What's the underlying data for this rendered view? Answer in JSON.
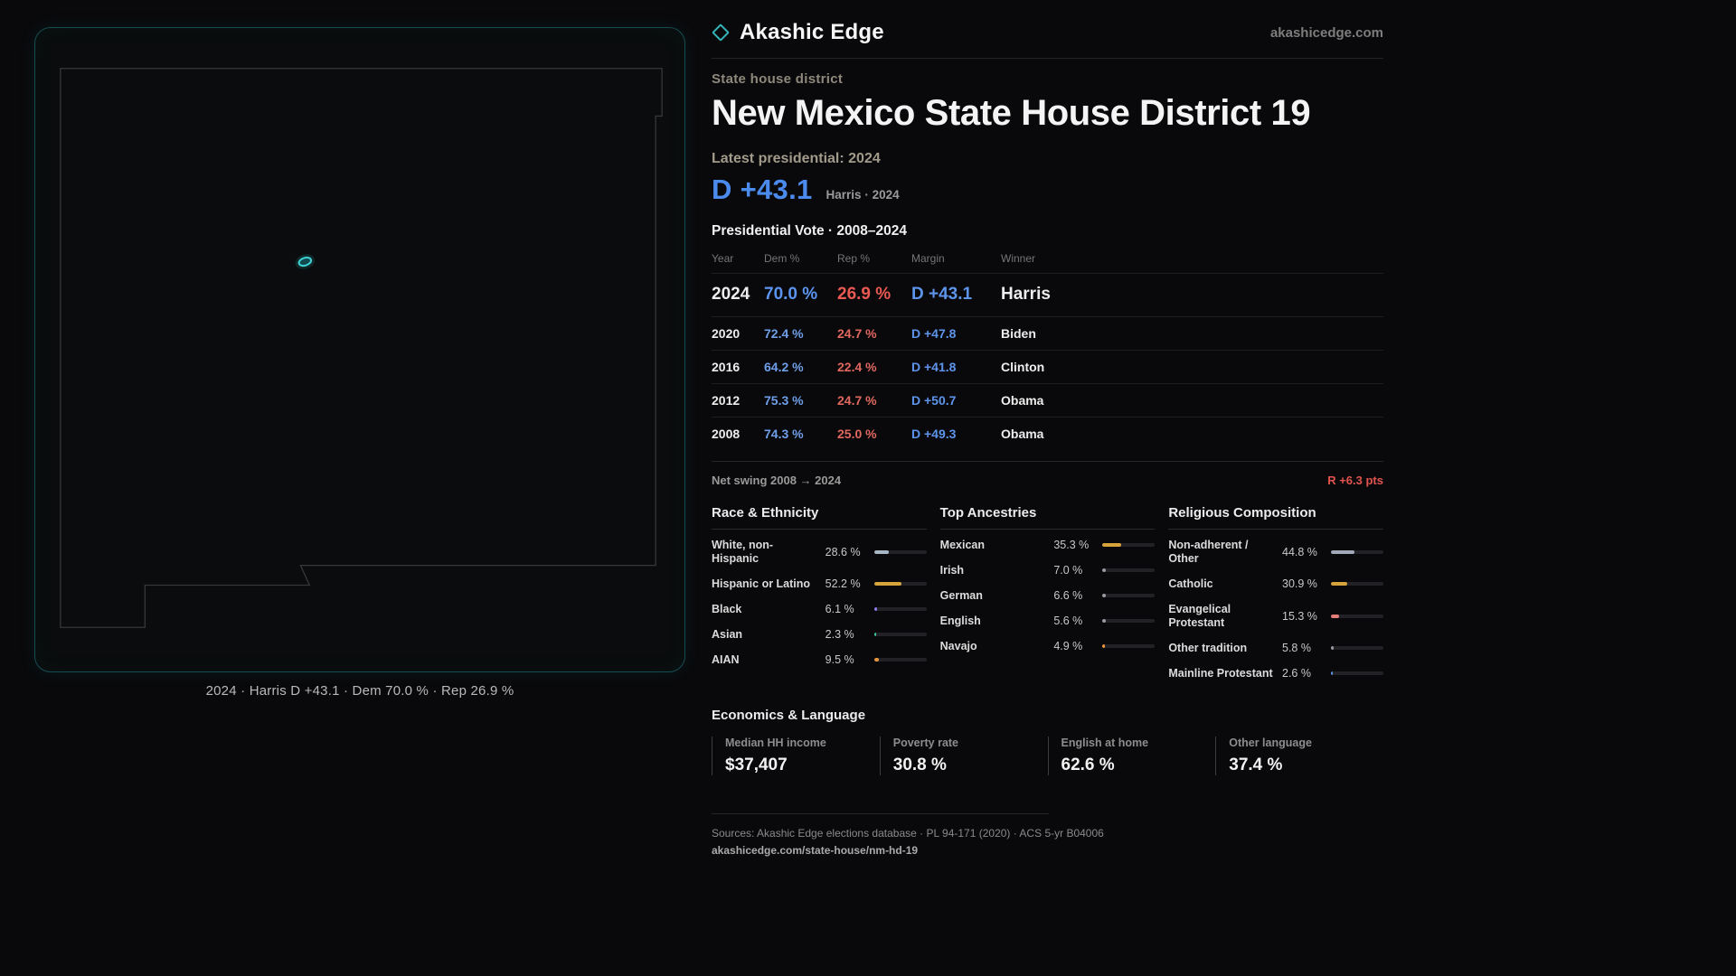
{
  "brand": {
    "name": "Akashic Edge",
    "domain": "akashicedge.com"
  },
  "map": {
    "caption": "2024 · Harris D +43.1 · Dem 70.0 % · Rep 26.9 %"
  },
  "header": {
    "kicker": "State house district",
    "title": "New Mexico State House District 19",
    "latest_label": "Latest presidential: 2024",
    "headline_margin": "D +43.1",
    "headline_note": "Harris · 2024"
  },
  "vote_table": {
    "title": "Presidential Vote · 2008–2024",
    "columns": [
      "Year",
      "Dem %",
      "Rep %",
      "Margin",
      "Winner"
    ],
    "rows": [
      {
        "year": "2024",
        "dem": "70.0 %",
        "rep": "26.9 %",
        "margin": "D +43.1",
        "winner": "Harris"
      },
      {
        "year": "2020",
        "dem": "72.4 %",
        "rep": "24.7 %",
        "margin": "D +47.8",
        "winner": "Biden"
      },
      {
        "year": "2016",
        "dem": "64.2 %",
        "rep": "22.4 %",
        "margin": "D +41.8",
        "winner": "Clinton"
      },
      {
        "year": "2012",
        "dem": "75.3 %",
        "rep": "24.7 %",
        "margin": "D +50.7",
        "winner": "Obama"
      },
      {
        "year": "2008",
        "dem": "74.3 %",
        "rep": "25.0 %",
        "margin": "D +49.3",
        "winner": "Obama"
      }
    ],
    "net_swing_label": "Net swing 2008 → 2024",
    "net_swing_value": "R +6.3 pts"
  },
  "demographics": [
    {
      "title": "Race & Ethnicity",
      "rows": [
        {
          "label": "White, non-Hispanic",
          "value": "28.6 %",
          "pct": 28.6,
          "color": "#a9b6c6"
        },
        {
          "label": "Hispanic or Latino",
          "value": "52.2 %",
          "pct": 52.2,
          "color": "#d7a43c"
        },
        {
          "label": "Black",
          "value": "6.1 %",
          "pct": 6.1,
          "color": "#8a7ef2"
        },
        {
          "label": "Asian",
          "value": "2.3 %",
          "pct": 2.3,
          "color": "#3ec9a7"
        },
        {
          "label": "AIAN",
          "value": "9.5 %",
          "pct": 9.5,
          "color": "#e8953c"
        }
      ]
    },
    {
      "title": "Top Ancestries",
      "rows": [
        {
          "label": "Mexican",
          "value": "35.3 %",
          "pct": 35.3,
          "color": "#d7a43c"
        },
        {
          "label": "Irish",
          "value": "7.0 %",
          "pct": 7.0,
          "color": "#9b9ba6"
        },
        {
          "label": "German",
          "value": "6.6 %",
          "pct": 6.6,
          "color": "#9b9ba6"
        },
        {
          "label": "English",
          "value": "5.6 %",
          "pct": 5.6,
          "color": "#9b9ba6"
        },
        {
          "label": "Navajo",
          "value": "4.9 %",
          "pct": 4.9,
          "color": "#e8953c"
        }
      ]
    },
    {
      "title": "Religious Composition",
      "rows": [
        {
          "label": "Non-adherent / Other",
          "value": "44.8 %",
          "pct": 44.8,
          "color": "#a0aab8"
        },
        {
          "label": "Catholic",
          "value": "30.9 %",
          "pct": 30.9,
          "color": "#d7a43c"
        },
        {
          "label": "Evangelical Protestant",
          "value": "15.3 %",
          "pct": 15.3,
          "color": "#e57d78"
        },
        {
          "label": "Other tradition",
          "value": "5.8 %",
          "pct": 5.8,
          "color": "#9b9ba6"
        },
        {
          "label": "Mainline Protestant",
          "value": "2.6 %",
          "pct": 2.6,
          "color": "#5e95ec"
        }
      ]
    }
  ],
  "economics": {
    "title": "Economics & Language",
    "stats": [
      {
        "label": "Median HH income",
        "value": "$37,407"
      },
      {
        "label": "Poverty rate",
        "value": "30.8 %"
      },
      {
        "label": "English at home",
        "value": "62.6 %"
      },
      {
        "label": "Other language",
        "value": "37.4 %"
      }
    ]
  },
  "footer": {
    "sources": "Sources: Akashic Edge elections database · PL 94-171 (2020) · ACS 5-yr B04006",
    "permalink": "akashicedge.com/state-house/nm-hd-19"
  },
  "chart_data": [
    {
      "type": "table",
      "title": "Presidential Vote · 2008–2024",
      "columns": [
        "Year",
        "Dem %",
        "Rep %",
        "Margin",
        "Winner"
      ],
      "rows": [
        [
          "2024",
          70.0,
          26.9,
          "D +43.1",
          "Harris"
        ],
        [
          "2020",
          72.4,
          24.7,
          "D +47.8",
          "Biden"
        ],
        [
          "2016",
          64.2,
          22.4,
          "D +41.8",
          "Clinton"
        ],
        [
          "2012",
          75.3,
          24.7,
          "D +50.7",
          "Obama"
        ],
        [
          "2008",
          74.3,
          25.0,
          "D +49.3",
          "Obama"
        ]
      ]
    },
    {
      "type": "bar",
      "title": "Race & Ethnicity",
      "categories": [
        "White, non-Hispanic",
        "Hispanic or Latino",
        "Black",
        "Asian",
        "AIAN"
      ],
      "values": [
        28.6,
        52.2,
        6.1,
        2.3,
        9.5
      ],
      "unit": "%",
      "xlim": [
        0,
        100
      ],
      "legend": false
    },
    {
      "type": "bar",
      "title": "Top Ancestries",
      "categories": [
        "Mexican",
        "Irish",
        "German",
        "English",
        "Navajo"
      ],
      "values": [
        35.3,
        7.0,
        6.6,
        5.6,
        4.9
      ],
      "unit": "%",
      "xlim": [
        0,
        100
      ],
      "legend": false
    },
    {
      "type": "bar",
      "title": "Religious Composition",
      "categories": [
        "Non-adherent / Other",
        "Catholic",
        "Evangelical Protestant",
        "Other tradition",
        "Mainline Protestant"
      ],
      "values": [
        44.8,
        30.9,
        15.3,
        5.8,
        2.6
      ],
      "unit": "%",
      "xlim": [
        0,
        100
      ],
      "legend": false
    }
  ]
}
